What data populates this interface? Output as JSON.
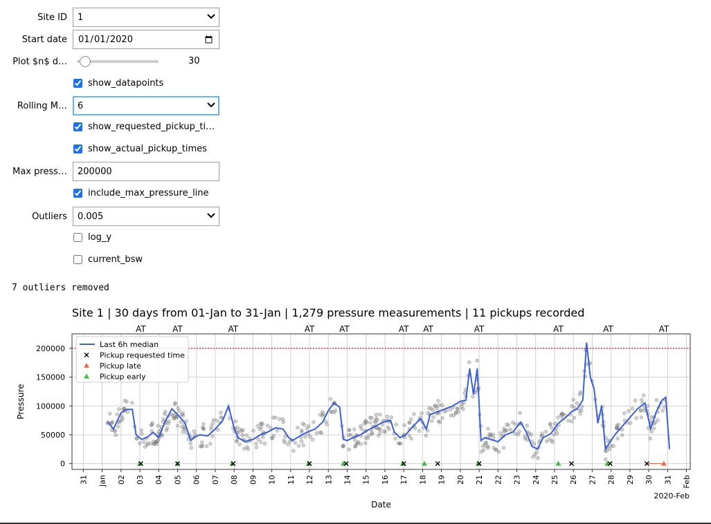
{
  "controls": {
    "site_id": {
      "label": "Site ID",
      "value": "1"
    },
    "start_date": {
      "label": "Start date",
      "value": "2020-01-01"
    },
    "plot_days": {
      "label": "Plot $n$ d…",
      "value": "30"
    },
    "show_datapoints": {
      "label": "show_datapoints",
      "checked": true
    },
    "rolling": {
      "label": "Rolling M…",
      "value": "6"
    },
    "show_requested": {
      "label": "show_requested_pickup_ti…",
      "checked": true
    },
    "show_actual": {
      "label": "show_actual_pickup_times",
      "checked": true
    },
    "max_pressure": {
      "label": "Max press…",
      "value": "200000"
    },
    "include_max": {
      "label": "include_max_pressure_line",
      "checked": true
    },
    "outliers": {
      "label": "Outliers",
      "value": "0.005"
    },
    "log_y": {
      "label": "log_y",
      "checked": false
    },
    "current_bsw": {
      "label": "current_bsw",
      "checked": false
    }
  },
  "output_note": "7 outliers removed",
  "colors": {
    "line": "#3a5fd6",
    "late": "#f06848",
    "early": "#3fbf3f",
    "max": "#dd2222",
    "points": "#808080"
  },
  "chart_data": {
    "type": "line",
    "title": "Site 1 | 30 days from 01-Jan to 31-Jan | 1,279 pressure measurements | 11 pickups recorded",
    "xlabel": "Date",
    "ylabel": "Pressure",
    "ylim": [
      -10000,
      225000
    ],
    "yticks": [
      0,
      50000,
      100000,
      150000,
      200000
    ],
    "xlim": [
      -0.6,
      32.2
    ],
    "xticks": [
      {
        "d": 0,
        "t": "31"
      },
      {
        "d": 1,
        "t": "Jan"
      },
      {
        "d": 2,
        "t": "02"
      },
      {
        "d": 3,
        "t": "03"
      },
      {
        "d": 4,
        "t": "04"
      },
      {
        "d": 5,
        "t": "05"
      },
      {
        "d": 6,
        "t": "06"
      },
      {
        "d": 7,
        "t": "07"
      },
      {
        "d": 8,
        "t": "08"
      },
      {
        "d": 9,
        "t": "09"
      },
      {
        "d": 10,
        "t": "10"
      },
      {
        "d": 11,
        "t": "11"
      },
      {
        "d": 12,
        "t": "12"
      },
      {
        "d": 13,
        "t": "13"
      },
      {
        "d": 14,
        "t": "14"
      },
      {
        "d": 15,
        "t": "15"
      },
      {
        "d": 16,
        "t": "16"
      },
      {
        "d": 17,
        "t": "17"
      },
      {
        "d": 18,
        "t": "18"
      },
      {
        "d": 19,
        "t": "19"
      },
      {
        "d": 20,
        "t": "20"
      },
      {
        "d": 21,
        "t": "21"
      },
      {
        "d": 22,
        "t": "22"
      },
      {
        "d": 23,
        "t": "23"
      },
      {
        "d": 24,
        "t": "24"
      },
      {
        "d": 25,
        "t": "25"
      },
      {
        "d": 26,
        "t": "26"
      },
      {
        "d": 27,
        "t": "27"
      },
      {
        "d": 28,
        "t": "28"
      },
      {
        "d": 29,
        "t": "29"
      },
      {
        "d": 30,
        "t": "30"
      },
      {
        "d": 31,
        "t": "31"
      },
      {
        "d": 32,
        "t": "Feb"
      }
    ],
    "x_offset_label": "2020-Feb",
    "max_pressure_line": 200000,
    "series": [
      {
        "name": "Last 6h median",
        "x": [
          1.3,
          1.6,
          2.0,
          2.3,
          2.6,
          2.8,
          3.1,
          3.4,
          3.7,
          4.0,
          4.3,
          4.7,
          5.1,
          5.4,
          5.7,
          5.9,
          6.2,
          6.6,
          7.0,
          7.4,
          7.7,
          8.0,
          8.2,
          8.6,
          9.0,
          9.4,
          9.8,
          10.2,
          10.6,
          10.9,
          11.1,
          11.5,
          11.9,
          12.3,
          12.7,
          13.0,
          13.3,
          13.6,
          13.8,
          14.0,
          14.3,
          14.7,
          15.1,
          15.5,
          15.9,
          16.3,
          16.5,
          16.8,
          17.1,
          17.5,
          17.9,
          18.2,
          18.4,
          18.8,
          19.2,
          19.6,
          20.0,
          20.3,
          20.5,
          20.7,
          20.9,
          21.1,
          21.3,
          21.6,
          22.0,
          22.4,
          22.8,
          23.2,
          23.5,
          23.8,
          24.1,
          24.4,
          24.8,
          25.2,
          25.6,
          25.9,
          26.2,
          26.5,
          26.7,
          26.9,
          27.1,
          27.3,
          27.5,
          27.7,
          27.9,
          28.2,
          28.6,
          29.0,
          29.4,
          29.8,
          30.1,
          30.4,
          30.7,
          30.9,
          31.1
        ],
        "y": [
          72000,
          60000,
          88000,
          94000,
          94000,
          50000,
          42000,
          46000,
          54000,
          45000,
          70000,
          95000,
          82000,
          70000,
          40000,
          46000,
          50000,
          48000,
          60000,
          75000,
          100000,
          62000,
          45000,
          38000,
          42000,
          50000,
          55000,
          62000,
          60000,
          45000,
          40000,
          48000,
          55000,
          60000,
          72000,
          92000,
          105000,
          98000,
          42000,
          40000,
          45000,
          50000,
          58000,
          65000,
          72000,
          75000,
          55000,
          45000,
          50000,
          65000,
          78000,
          60000,
          85000,
          90000,
          95000,
          100000,
          108000,
          110000,
          165000,
          120000,
          165000,
          40000,
          45000,
          42000,
          38000,
          50000,
          55000,
          72000,
          55000,
          30000,
          25000,
          45000,
          52000,
          70000,
          80000,
          90000,
          95000,
          110000,
          210000,
          150000,
          130000,
          70000,
          100000,
          25000,
          35000,
          50000,
          65000,
          80000,
          95000,
          105000,
          60000,
          90000,
          110000,
          115000,
          25000
        ]
      },
      {
        "name": "Pickup requested time",
        "x": [
          3.05,
          5.0,
          7.95,
          12.0,
          13.95,
          17.0,
          18.8,
          21.0,
          25.9,
          27.95,
          29.9
        ],
        "y": [
          0,
          0,
          0,
          0,
          0,
          0,
          0,
          0,
          0,
          0,
          0
        ]
      },
      {
        "name": "Pickup late",
        "x": [
          30.8
        ],
        "y": [
          0
        ]
      },
      {
        "name": "Pickup early",
        "x": [
          3.0,
          5.0,
          7.9,
          11.95,
          13.8,
          16.95,
          18.1,
          20.95,
          25.2,
          27.8
        ],
        "y": [
          0,
          0,
          0,
          0,
          0,
          0,
          0,
          0,
          0,
          0
        ]
      }
    ],
    "at_labels": [
      {
        "x": 3.05,
        "t": "AT"
      },
      {
        "x": 5.0,
        "t": "AT"
      },
      {
        "x": 7.95,
        "t": "AT"
      },
      {
        "x": 12.0,
        "t": "AT"
      },
      {
        "x": 13.85,
        "t": "AT"
      },
      {
        "x": 17.0,
        "t": "AT"
      },
      {
        "x": 18.3,
        "t": "AT"
      },
      {
        "x": 21.0,
        "t": "AT"
      },
      {
        "x": 25.2,
        "t": "AT"
      },
      {
        "x": 27.85,
        "t": "AT"
      },
      {
        "x": 30.8,
        "t": "AT"
      }
    ],
    "legend_position": "top-left",
    "grid": true
  }
}
